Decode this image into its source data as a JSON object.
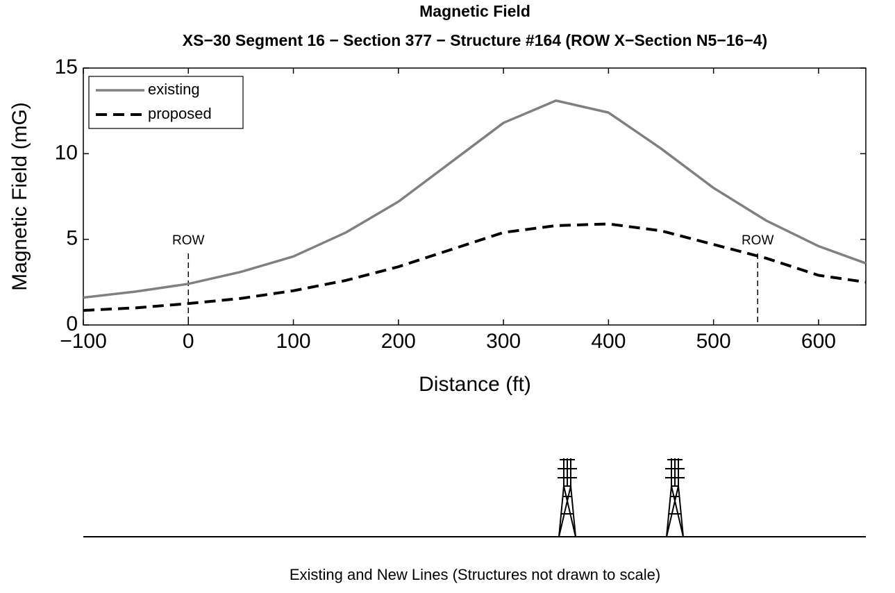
{
  "chart_data": {
    "type": "line",
    "title": "Magnetic Field",
    "subtitle": "XS−30 Segment 16 − Section 377 − Structure #164 (ROW X−Section N5−16−4)",
    "x_label": "Distance (ft)",
    "y_label": "Magnetic Field (mG)",
    "x": [
      -100,
      -50,
      0,
      50,
      100,
      150,
      200,
      250,
      300,
      350,
      400,
      450,
      500,
      550,
      600,
      645
    ],
    "series": [
      {
        "name": "existing",
        "color": "#808080",
        "dash": false,
        "values": [
          1.6,
          1.95,
          2.4,
          3.1,
          4.0,
          5.4,
          7.2,
          9.5,
          11.8,
          13.1,
          12.4,
          10.3,
          8.0,
          6.1,
          4.6,
          3.6
        ]
      },
      {
        "name": "proposed",
        "color": "#000000",
        "dash": true,
        "values": [
          0.85,
          1.0,
          1.25,
          1.55,
          2.0,
          2.6,
          3.4,
          4.4,
          5.4,
          5.8,
          5.9,
          5.5,
          4.7,
          3.9,
          2.9,
          2.5
        ]
      }
    ],
    "xlim": [
      -100,
      645
    ],
    "ylim": [
      0,
      15
    ],
    "xticks": [
      {
        "value": -100,
        "label": "−100"
      },
      0,
      100,
      200,
      300,
      400,
      500,
      600
    ],
    "yticks": [
      0,
      5,
      10,
      15
    ],
    "legend": "upper-left",
    "annotations": [
      {
        "text": "ROW",
        "x": 0
      },
      {
        "text": "ROW",
        "x": 542
      }
    ],
    "caption": "Existing and New Lines (Structures not drawn to scale)"
  }
}
